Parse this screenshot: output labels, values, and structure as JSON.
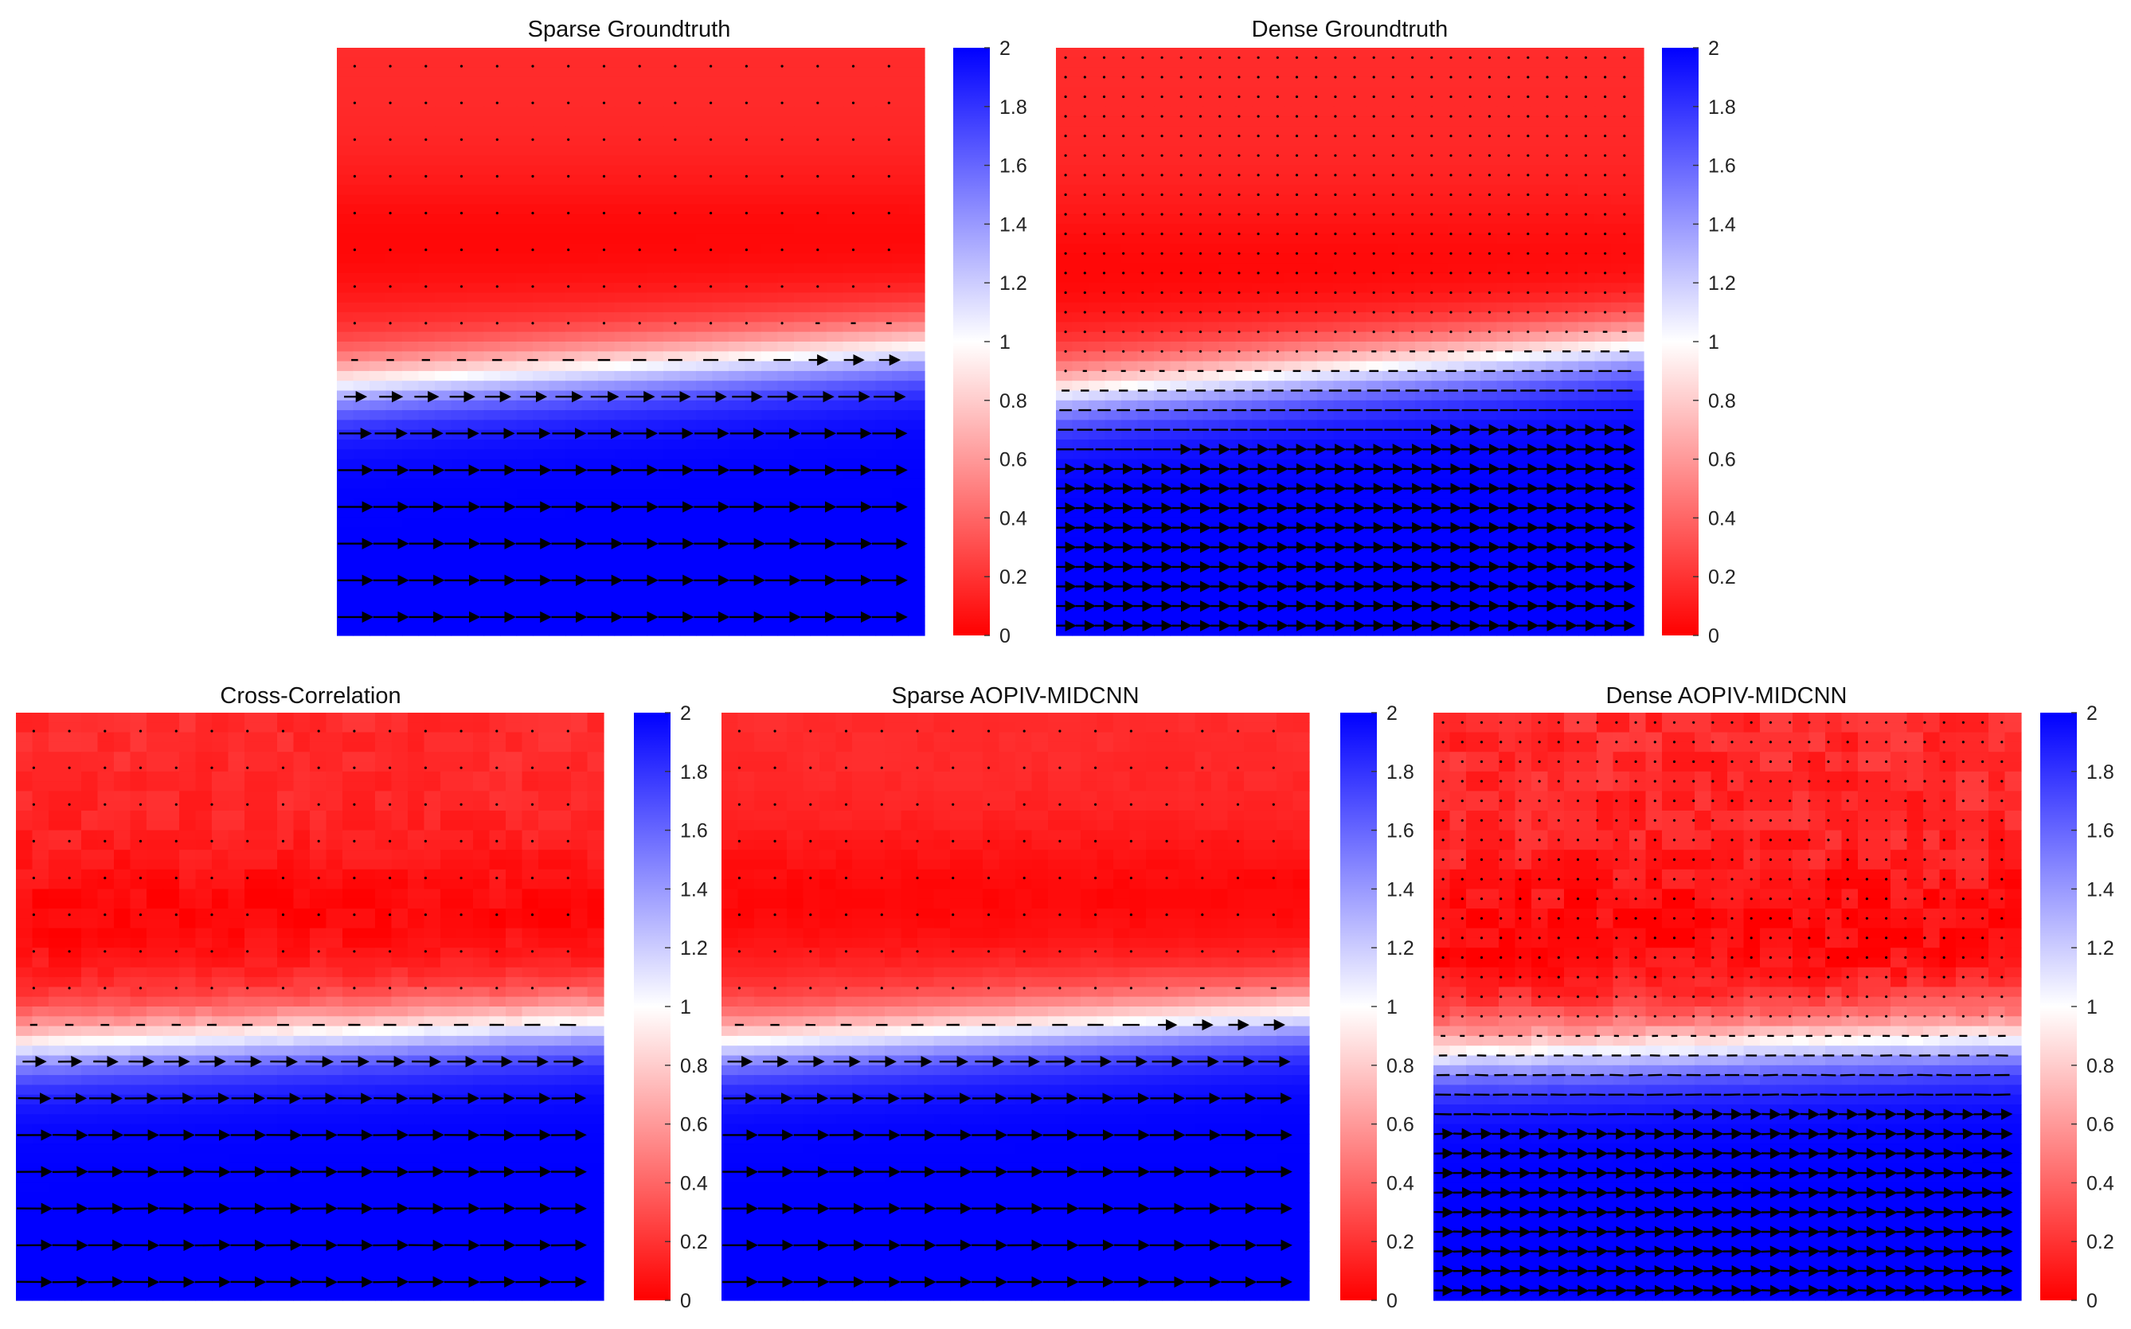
{
  "figure": {
    "panels": [
      {
        "id": "sparse-groundtruth",
        "title": "Sparse Groundtruth",
        "density": "sparse",
        "front_y": 0.545,
        "front_tilt": 0.06,
        "red_peak": 0.33,
        "noise": 0.0
      },
      {
        "id": "dense-groundtruth",
        "title": "Dense Groundtruth",
        "density": "dense",
        "front_y": 0.55,
        "front_tilt": 0.08,
        "red_peak": 0.38,
        "noise": 0.0
      },
      {
        "id": "cross-correlation",
        "title": "Cross-Correlation",
        "density": "sparse",
        "front_y": 0.55,
        "front_tilt": 0.04,
        "red_peak": 0.35,
        "noise": 0.05
      },
      {
        "id": "sparse-aopiv-midcnn",
        "title": "Sparse AOPIV-MIDCNN",
        "density": "sparse",
        "front_y": 0.54,
        "front_tilt": 0.05,
        "red_peak": 0.32,
        "noise": 0.02
      },
      {
        "id": "dense-aopiv-midcnn",
        "title": "Dense AOPIV-MIDCNN",
        "density": "dense",
        "front_y": 0.57,
        "front_tilt": 0.03,
        "red_peak": 0.38,
        "noise": 0.08
      }
    ]
  },
  "chart_data": {
    "type": "heatmap",
    "description_fields": "contour map of velocity magnitude with overlaid quiver arrows",
    "colorbar": {
      "min": 0,
      "max": 2,
      "ticks": [
        "0",
        "0.2",
        "0.4",
        "0.6",
        "0.8",
        "1",
        "1.2",
        "1.4",
        "1.6",
        "1.8",
        "2"
      ],
      "colors": {
        "low": "#ff0000",
        "mid": "#ffffff",
        "high": "#0000ff"
      }
    },
    "field": {
      "upper_region_value": 0.1,
      "lower_region_value": 2.0,
      "front_value": 1.0,
      "flow_direction": "left-to-right, increasing below the front"
    }
  }
}
